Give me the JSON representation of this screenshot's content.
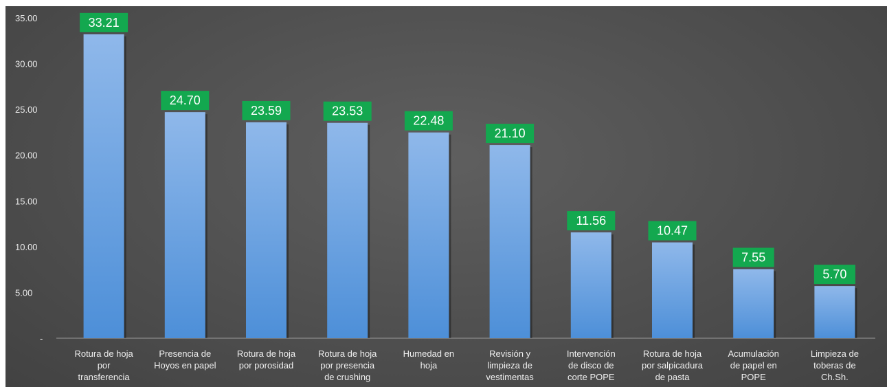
{
  "chart_data": {
    "type": "bar",
    "title": "",
    "xlabel": "",
    "ylabel": "",
    "ylim": [
      0,
      35
    ],
    "y_ticks": [
      "-",
      "5.00",
      "10.00",
      "15.00",
      "20.00",
      "25.00",
      "30.00",
      "35.00"
    ],
    "grid": false,
    "categories": [
      [
        "Rotura de hoja",
        "por",
        "transferencia"
      ],
      [
        "Presencia de",
        "Hoyos en papel"
      ],
      [
        "Rotura de hoja",
        "por porosidad"
      ],
      [
        "Rotura de hoja",
        "por presencia",
        "de crushing"
      ],
      [
        "Humedad en",
        "hoja"
      ],
      [
        "Revisión y",
        "limpieza de",
        "vestimentas"
      ],
      [
        "Intervención",
        "de disco de",
        "corte POPE"
      ],
      [
        "Rotura de hoja",
        "por salpicadura",
        "de pasta"
      ],
      [
        "Acumulación",
        "de papel en",
        "POPE"
      ],
      [
        "Limpieza de",
        "toberas de",
        "Ch.Sh."
      ]
    ],
    "values": [
      33.21,
      24.7,
      23.59,
      23.53,
      22.48,
      21.1,
      11.56,
      10.47,
      7.55,
      5.7
    ],
    "data_labels": [
      "33.21",
      "24.70",
      "23.59",
      "23.53",
      "22.48",
      "21.10",
      "11.56",
      "10.47",
      "7.55",
      "5.70"
    ],
    "colors": {
      "bar_top": "#8fb8ea",
      "bar_bottom": "#4d8fd8",
      "label_box": "#13a84f",
      "axis_line": "#9a9a9a"
    }
  }
}
